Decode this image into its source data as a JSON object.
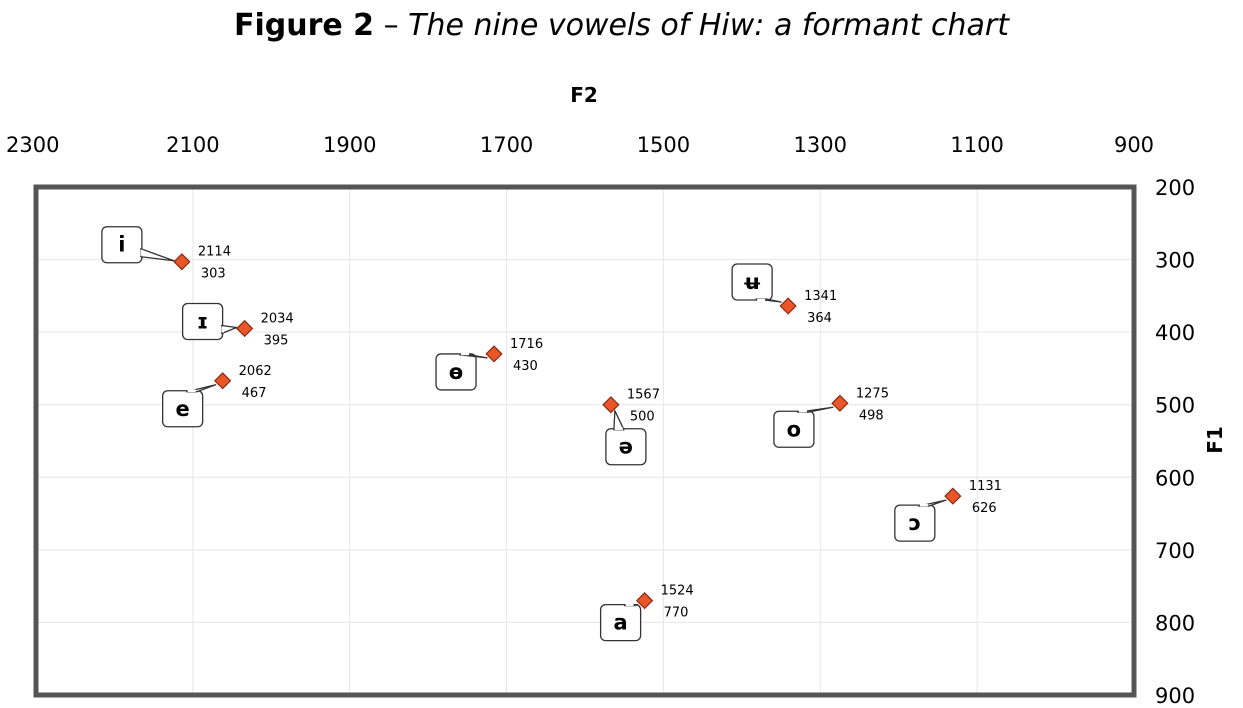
{
  "title_bold": "Figure 2",
  "title_sep": " – ",
  "title_italic": "The nine vowels of Hiw: a formant chart",
  "chart_data": {
    "type": "scatter",
    "title": "Figure 2 – The nine vowels of Hiw: a formant chart",
    "xlabel": "F2",
    "ylabel": "F1",
    "xlim": [
      2300,
      900
    ],
    "ylim": [
      200,
      900
    ],
    "x_axis_reversed": true,
    "y_axis_reversed": true,
    "x_axis_position": "top",
    "y_axis_position": "right",
    "xticks": [
      2300,
      2100,
      1900,
      1700,
      1500,
      1300,
      1100,
      900
    ],
    "yticks": [
      200,
      300,
      400,
      500,
      600,
      700,
      800,
      900
    ],
    "grid": true,
    "marker_color": "#e8562a",
    "marker_edge_color": "#8a2a0e",
    "points": [
      {
        "label": "i",
        "x": 2114,
        "y": 303
      },
      {
        "label": "ɪ",
        "x": 2034,
        "y": 395
      },
      {
        "label": "e",
        "x": 2062,
        "y": 467
      },
      {
        "label": "ɵ",
        "x": 1716,
        "y": 430
      },
      {
        "label": "ə",
        "x": 1567,
        "y": 500
      },
      {
        "label": "a",
        "x": 1524,
        "y": 770
      },
      {
        "label": "ʉ",
        "x": 1341,
        "y": 364
      },
      {
        "label": "o",
        "x": 1275,
        "y": 498
      },
      {
        "label": "ɔ",
        "x": 1131,
        "y": 626
      }
    ]
  }
}
